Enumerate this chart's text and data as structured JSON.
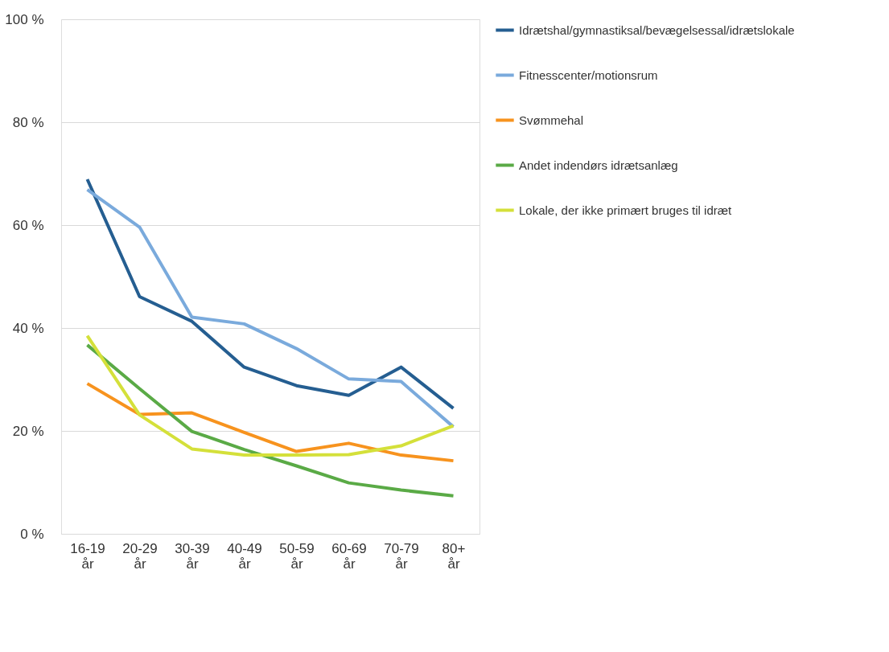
{
  "chart_data": {
    "type": "line",
    "categories": [
      "16-19 år",
      "20-29 år",
      "30-39 år",
      "40-49 år",
      "50-59 år",
      "60-69 år",
      "70-79 år",
      "80+ år"
    ],
    "series": [
      {
        "name": "Idrætshal/gymnastiksal/bevægelsessal/idrætslokale",
        "color": "#255e91",
        "values": [
          68.9,
          46.1,
          41.3,
          32.4,
          28.8,
          26.9,
          32.4,
          24.4
        ]
      },
      {
        "name": "Fitnesscenter/motionsrum",
        "color": "#7aaadc",
        "values": [
          66.9,
          59.6,
          42.1,
          40.8,
          36.0,
          30.1,
          29.6,
          20.8
        ]
      },
      {
        "name": "Svømmehal",
        "color": "#f7931e",
        "values": [
          29.2,
          23.2,
          23.5,
          19.7,
          16.0,
          17.6,
          15.3,
          14.2
        ]
      },
      {
        "name": "Andet indendørs idrætsanlæg",
        "color": "#5aaa46",
        "values": [
          36.7,
          28.2,
          19.9,
          16.4,
          13.2,
          9.9,
          8.5,
          7.4
        ]
      },
      {
        "name": "Lokale, der ikke primært bruges til idræt",
        "color": "#d4e03a",
        "values": [
          38.5,
          23.1,
          16.5,
          15.3,
          15.3,
          15.4,
          17.1,
          21.0
        ]
      }
    ],
    "ylim": [
      0,
      100
    ],
    "yticks": [
      {
        "value": 0,
        "label": "0 %"
      },
      {
        "value": 20,
        "label": "20 %"
      },
      {
        "value": 40,
        "label": "40 %"
      },
      {
        "value": 60,
        "label": "60 %"
      },
      {
        "value": 80,
        "label": "80 %"
      },
      {
        "value": 100,
        "label": "100 %"
      }
    ],
    "grid": "y",
    "legend": "right",
    "marker": "none",
    "line_style": "solid"
  }
}
